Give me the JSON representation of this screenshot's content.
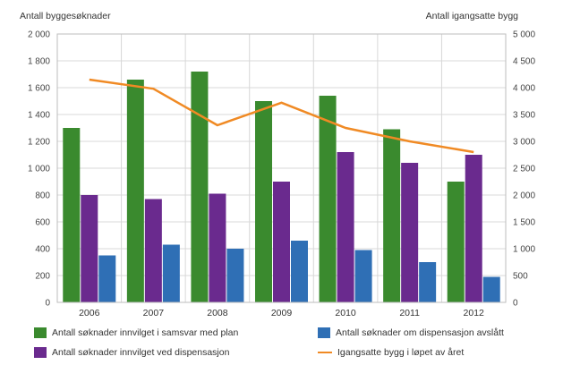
{
  "chart_data": {
    "type": "bar",
    "title": "",
    "left_axis_label": "Antall byggesøknader",
    "right_axis_label": "Antall igangsatte bygg",
    "categories": [
      "2006",
      "2007",
      "2008",
      "2009",
      "2010",
      "2011",
      "2012"
    ],
    "ylim_left": [
      0,
      2000
    ],
    "ylim_right": [
      0,
      5000
    ],
    "left_ticks": [
      "0",
      "200",
      "400",
      "600",
      "800",
      "1 000",
      "1 200",
      "1 400",
      "1 600",
      "1 800",
      "2 000"
    ],
    "right_ticks": [
      "0",
      "500",
      "1 000",
      "1 500",
      "2 000",
      "2 500",
      "3 000",
      "3 500",
      "4 000",
      "4 500",
      "5 000"
    ],
    "grid": true,
    "legend_position": "bottom",
    "series": [
      {
        "name": "Antall søknader innvilget i samsvar med plan",
        "type": "bar",
        "axis": "left",
        "color": "#3a8a2e",
        "values": [
          1300,
          1660,
          1720,
          1500,
          1540,
          1290,
          900
        ]
      },
      {
        "name": "Antall søknader innvilget ved dispensasjon",
        "type": "bar",
        "axis": "left",
        "color": "#6a2a8e",
        "values": [
          800,
          770,
          810,
          900,
          1120,
          1040,
          1100
        ]
      },
      {
        "name": "Antall søknader om dispensasjon avslått",
        "type": "bar",
        "axis": "left",
        "color": "#2f6fb5",
        "values": [
          350,
          430,
          400,
          460,
          390,
          300,
          190
        ]
      },
      {
        "name": "Igangsatte bygg i løpet av året",
        "type": "line",
        "axis": "right",
        "color": "#f08a24",
        "values": [
          4150,
          3980,
          3300,
          3720,
          3250,
          3000,
          2800
        ]
      }
    ]
  }
}
